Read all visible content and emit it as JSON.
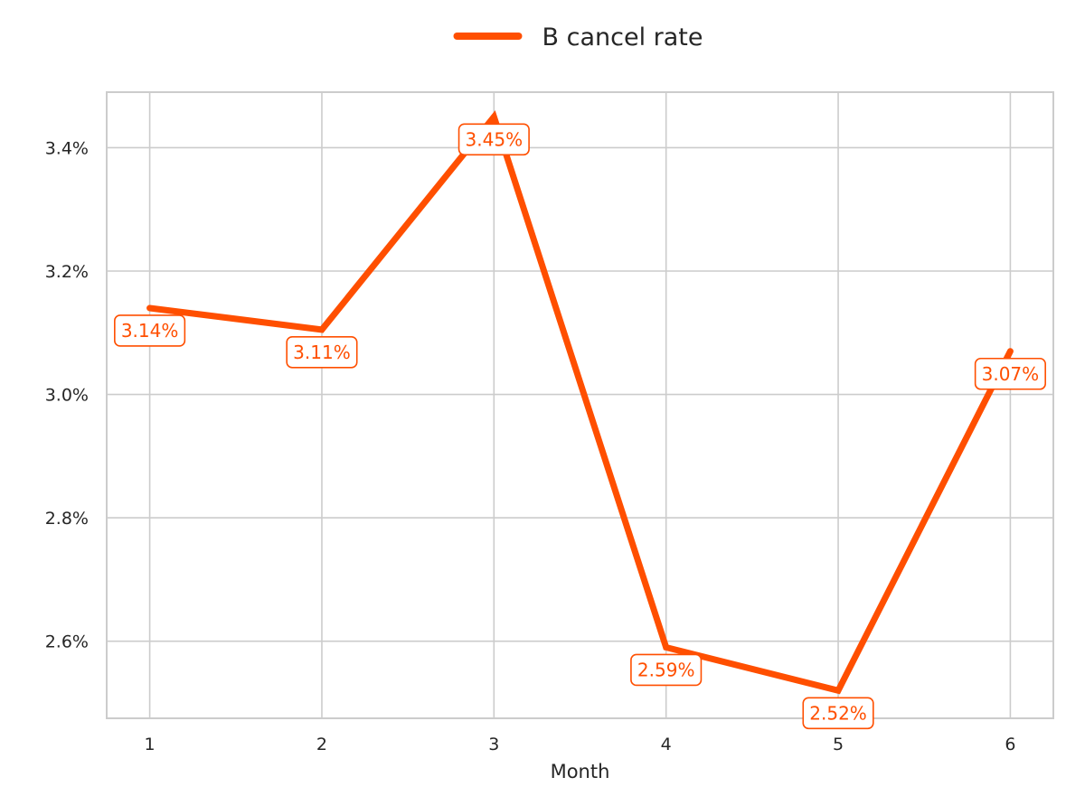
{
  "chart_data": {
    "type": "line",
    "title": "",
    "xlabel": "Month",
    "ylabel": "",
    "x": [
      1,
      2,
      3,
      4,
      5,
      6
    ],
    "x_tick_labels": [
      "1",
      "2",
      "3",
      "4",
      "5",
      "6"
    ],
    "y_ticks": [
      2.6,
      2.8,
      3.0,
      3.2,
      3.4
    ],
    "y_tick_labels": [
      "2.6%",
      "2.8%",
      "3.0%",
      "3.2%",
      "3.4%"
    ],
    "ylim": [
      2.475,
      3.49
    ],
    "xlim": [
      0.75,
      6.25
    ],
    "grid": true,
    "legend_position": "top-center",
    "series": [
      {
        "name": "B cancel rate",
        "color": "#ff4f00",
        "values": [
          3.14,
          3.105,
          3.45,
          2.59,
          2.52,
          3.07
        ],
        "data_labels": [
          "3.14%",
          "3.11%",
          "3.45%",
          "2.59%",
          "2.52%",
          "3.07%"
        ]
      }
    ]
  }
}
